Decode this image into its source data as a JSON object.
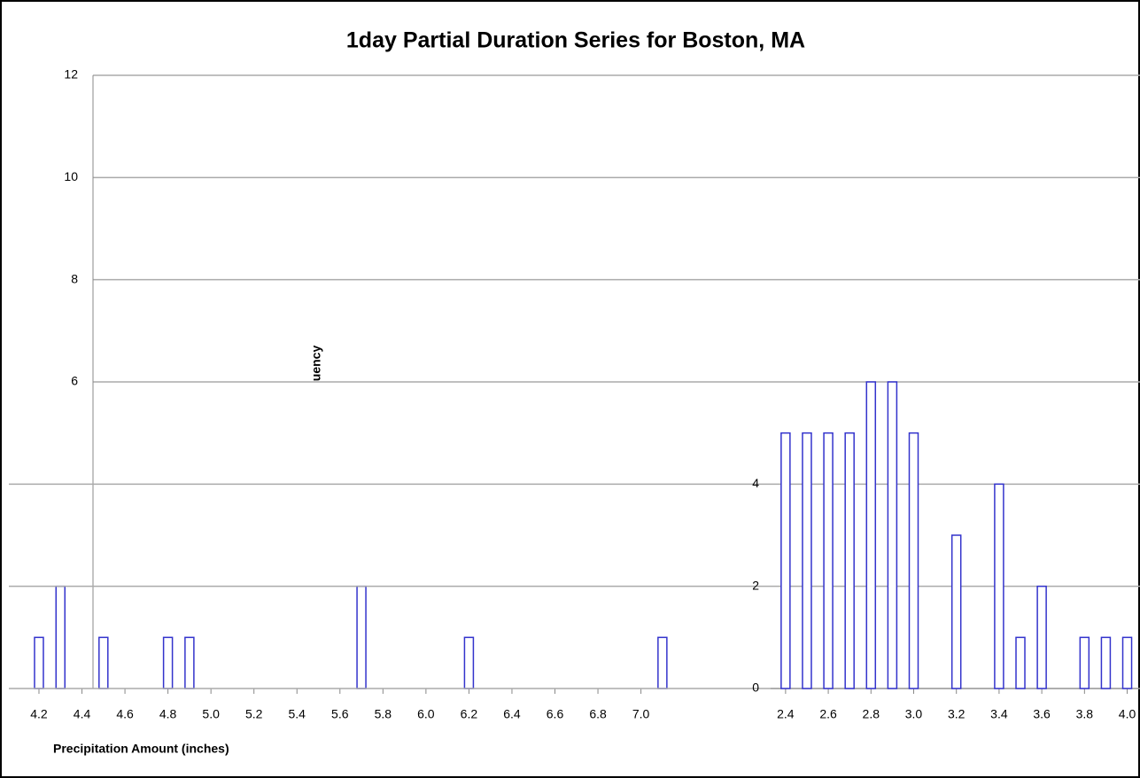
{
  "chart_data": [
    {
      "type": "bar",
      "title": "1day Partial Duration Series for Boston, MA",
      "x_label": "Precipitation Amount (inches)",
      "y_label": "uency",
      "x": [
        4.2,
        4.3,
        4.5,
        4.8,
        4.9,
        5.7,
        6.2,
        7.1
      ],
      "values": [
        1,
        2,
        1,
        1,
        1,
        2,
        1,
        1
      ],
      "color": "#3333cc",
      "xlim": [
        4.06,
        7.15
      ],
      "xticks": [
        {
          "value": 4.2,
          "label": "4.2"
        },
        {
          "value": 4.4,
          "label": "4.4"
        },
        {
          "value": 4.6,
          "label": "4.6"
        },
        {
          "value": 4.8,
          "label": "4.8"
        },
        {
          "value": 5.0,
          "label": "5.0"
        },
        {
          "value": 5.2,
          "label": "5.2"
        },
        {
          "value": 5.4,
          "label": "5.4"
        },
        {
          "value": 5.6,
          "label": "5.6"
        },
        {
          "value": 5.8,
          "label": "5.8"
        },
        {
          "value": 6.0,
          "label": "6.0"
        },
        {
          "value": 6.2,
          "label": "6.2"
        },
        {
          "value": 6.4,
          "label": "6.4"
        },
        {
          "value": 6.6,
          "label": "6.6"
        },
        {
          "value": 6.8,
          "label": "6.8"
        },
        {
          "value": 7.0,
          "label": "7.0"
        }
      ],
      "ylim": [
        0,
        12
      ],
      "yticks": [
        6,
        8,
        10,
        12
      ],
      "grid": true
    },
    {
      "type": "bar",
      "x": [
        2.4,
        2.5,
        2.6,
        2.7,
        2.8,
        2.9,
        3.0,
        3.2,
        3.4,
        3.5,
        3.6,
        3.8,
        3.9,
        4.0
      ],
      "values": [
        5,
        5,
        5,
        5,
        6,
        6,
        5,
        3,
        4,
        1,
        2,
        1,
        1,
        1
      ],
      "color": "#3333cc",
      "xlim": [
        2.33,
        4.06
      ],
      "xticks": [
        {
          "value": 2.4,
          "label": "2.4"
        },
        {
          "value": 2.6,
          "label": "2.6"
        },
        {
          "value": 2.8,
          "label": "2.8"
        },
        {
          "value": 3.0,
          "label": "3.0"
        },
        {
          "value": 3.2,
          "label": "3.2"
        },
        {
          "value": 3.4,
          "label": "3.4"
        },
        {
          "value": 3.6,
          "label": "3.6"
        },
        {
          "value": 3.8,
          "label": "3.8"
        },
        {
          "value": 4.0,
          "label": "4.0"
        }
      ],
      "ylim": [
        0,
        12
      ],
      "yticks": [
        0,
        2,
        4
      ],
      "grid": true
    }
  ]
}
